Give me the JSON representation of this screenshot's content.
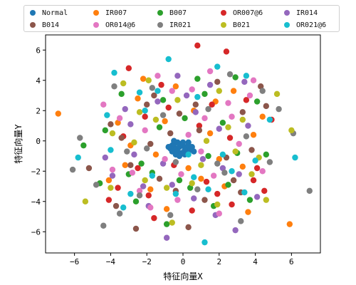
{
  "chart_data": {
    "type": "scatter",
    "title": "",
    "xlabel": "特征向量X",
    "ylabel": "特征向量Y",
    "xlim": [
      -7.6,
      7.6
    ],
    "ylim": [
      -7.4,
      7.0
    ],
    "xticks": [
      -6,
      -4,
      -2,
      0,
      2,
      4,
      6
    ],
    "yticks": [
      -6,
      -4,
      -2,
      0,
      2,
      4,
      6
    ],
    "tick_labels_x": [
      "−6",
      "−4",
      "−2",
      "0",
      "2",
      "4",
      "6"
    ],
    "tick_labels_y": [
      "−6",
      "−4",
      "−2",
      "0",
      "2",
      "4",
      "6"
    ],
    "legend_position": "top",
    "series": [
      {
        "name": "Normal",
        "color": "#1f77b4",
        "points": [
          [
            -0.6,
            -0.3
          ],
          [
            -0.4,
            -0.5
          ],
          [
            -0.2,
            -0.4
          ],
          [
            0.0,
            -0.3
          ],
          [
            0.2,
            -0.5
          ],
          [
            -0.5,
            -0.2
          ],
          [
            -0.3,
            -0.7
          ],
          [
            0.1,
            -0.6
          ],
          [
            -0.1,
            -0.2
          ],
          [
            0.3,
            -0.3
          ],
          [
            -0.4,
            -0.9
          ],
          [
            0.2,
            -0.8
          ],
          [
            -0.7,
            -0.5
          ],
          [
            0.4,
            -0.6
          ],
          [
            -0.2,
            -1.0
          ],
          [
            0.0,
            -0.1
          ],
          [
            -0.8,
            -0.4
          ],
          [
            0.5,
            -0.4
          ],
          [
            -0.3,
            -0.1
          ],
          [
            0.1,
            -0.9
          ],
          [
            -0.6,
            -0.7
          ],
          [
            0.3,
            -0.1
          ],
          [
            -0.1,
            -0.8
          ],
          [
            0.6,
            -0.7
          ],
          [
            -0.5,
            0.0
          ]
        ]
      },
      {
        "name": "IR007",
        "color": "#ff7f0e",
        "points": [
          [
            -6.9,
            1.8
          ],
          [
            5.9,
            -5.5
          ],
          [
            -3.2,
            -1.6
          ],
          [
            3.6,
            -4.7
          ],
          [
            -1.0,
            1.3
          ],
          [
            1.5,
            0.5
          ],
          [
            2.0,
            -1.2
          ],
          [
            -2.5,
            2.8
          ],
          [
            2.8,
            3.3
          ],
          [
            -4.1,
            -2.6
          ],
          [
            1.0,
            -2.5
          ],
          [
            -0.4,
            3.6
          ],
          [
            3.3,
            -1.7
          ],
          [
            -1.8,
            -3.2
          ],
          [
            0.6,
            2.0
          ],
          [
            -2.9,
            -0.3
          ],
          [
            4.4,
            1.6
          ],
          [
            -0.9,
            -4.5
          ],
          [
            2.3,
            -3.0
          ],
          [
            -3.6,
            1.2
          ],
          [
            0.3,
            -1.8
          ],
          [
            1.8,
            2.6
          ],
          [
            -1.5,
            -0.9
          ],
          [
            3.9,
            0.4
          ],
          [
            -2.2,
            4.1
          ]
        ]
      },
      {
        "name": "B007",
        "color": "#2ca02c",
        "points": [
          [
            -5.5,
            -0.3
          ],
          [
            4.1,
            2.6
          ],
          [
            -2.3,
            -1.5
          ],
          [
            2.5,
            -2.9
          ],
          [
            -1.1,
            2.7
          ],
          [
            1.2,
            3.1
          ],
          [
            -3.4,
            3.1
          ],
          [
            3.0,
            -0.8
          ],
          [
            -0.9,
            -5.5
          ],
          [
            1.7,
            -4.3
          ],
          [
            -4.3,
            0.7
          ],
          [
            0.4,
            -3.1
          ],
          [
            2.2,
            1.2
          ],
          [
            -1.7,
            -2.1
          ],
          [
            3.7,
            -3.9
          ],
          [
            -2.6,
            -4.0
          ],
          [
            0.8,
            4.1
          ],
          [
            -0.2,
            -2.6
          ],
          [
            4.6,
            -0.9
          ],
          [
            -3.0,
            -2.2
          ],
          [
            1.4,
            -1.0
          ],
          [
            -1.3,
            0.9
          ],
          [
            2.9,
            4.2
          ],
          [
            -4.6,
            -2.8
          ],
          [
            0.1,
            1.5
          ]
        ]
      },
      {
        "name": "OR007@6",
        "color": "#d62728",
        "points": [
          [
            0.8,
            6.3
          ],
          [
            2.4,
            5.9
          ],
          [
            -3.6,
            -3.1
          ],
          [
            4.1,
            -1.8
          ],
          [
            -3.0,
            4.8
          ],
          [
            1.3,
            -2.7
          ],
          [
            -1.9,
            -3.6
          ],
          [
            2.6,
            0.2
          ],
          [
            -0.5,
            -1.6
          ],
          [
            3.5,
            2.7
          ],
          [
            -2.1,
            1.6
          ],
          [
            0.5,
            -4.6
          ],
          [
            -4.1,
            -3.9
          ],
          [
            4.9,
            1.4
          ],
          [
            -1.2,
            3.7
          ],
          [
            1.9,
            -3.5
          ],
          [
            -3.3,
            0.3
          ],
          [
            2.7,
            -4.2
          ],
          [
            -0.8,
            2.2
          ],
          [
            3.9,
            -2.6
          ],
          [
            -2.5,
            -1.8
          ],
          [
            0.9,
            1.0
          ],
          [
            4.5,
            -3.3
          ],
          [
            -1.6,
            -5.1
          ],
          [
            1.6,
            2.4
          ]
        ]
      },
      {
        "name": "IR014",
        "color": "#9467bd",
        "points": [
          [
            -0.9,
            -6.4
          ],
          [
            3.4,
            3.9
          ],
          [
            -3.9,
            -2.3
          ],
          [
            2.9,
            -5.9
          ],
          [
            -1.4,
            2.6
          ],
          [
            0.6,
            -3.8
          ],
          [
            -2.7,
            -0.9
          ],
          [
            2.2,
            -1.8
          ],
          [
            -0.3,
            4.3
          ],
          [
            3.6,
            1.0
          ],
          [
            -1.9,
            -4.3
          ],
          [
            1.5,
            3.7
          ],
          [
            -3.2,
            2.1
          ],
          [
            4.1,
            -3.7
          ],
          [
            -0.6,
            -2.9
          ],
          [
            2.0,
            0.8
          ],
          [
            -4.3,
            -1.1
          ],
          [
            0.2,
            3.0
          ],
          [
            -2.2,
            -3.0
          ],
          [
            1.1,
            -1.2
          ],
          [
            3.1,
            -2.2
          ],
          [
            -1.1,
            -1.5
          ],
          [
            0.7,
            1.9
          ],
          [
            -2.9,
            1.1
          ],
          [
            1.8,
            -4.9
          ]
        ]
      },
      {
        "name": "B014",
        "color": "#8c564b",
        "points": [
          [
            -5.2,
            -1.8
          ],
          [
            4.3,
            3.6
          ],
          [
            -2.6,
            -5.8
          ],
          [
            3.2,
            -3.4
          ],
          [
            -1.6,
            3.0
          ],
          [
            0.7,
            2.4
          ],
          [
            -2.9,
            -1.6
          ],
          [
            2.4,
            -1.1
          ],
          [
            -0.4,
            -3.3
          ],
          [
            1.9,
            3.9
          ],
          [
            -4.0,
            1.1
          ],
          [
            3.8,
            -0.6
          ],
          [
            -1.3,
            -2.5
          ],
          [
            0.3,
            -5.7
          ],
          [
            -3.4,
            0.2
          ],
          [
            4.6,
            2.3
          ],
          [
            -0.7,
            0.5
          ],
          [
            2.8,
            -2.6
          ],
          [
            -2.0,
            2.4
          ],
          [
            1.2,
            -3.9
          ],
          [
            -3.7,
            -4.3
          ],
          [
            0.9,
            0.7
          ],
          [
            -1.8,
            -0.2
          ],
          [
            3.3,
            1.9
          ],
          [
            -0.2,
            1.8
          ]
        ]
      },
      {
        "name": "OR014@6",
        "color": "#e377c2",
        "points": [
          [
            0.5,
            3.4
          ],
          [
            -2.1,
            0.7
          ],
          [
            2.0,
            -4.8
          ],
          [
            -3.9,
            -1.9
          ],
          [
            3.9,
            4.0
          ],
          [
            -1.0,
            -1.2
          ],
          [
            1.2,
            1.5
          ],
          [
            -2.8,
            -2.1
          ],
          [
            3.1,
            -0.2
          ],
          [
            -0.1,
            -2.2
          ],
          [
            2.5,
            2.5
          ],
          [
            -3.5,
            1.5
          ],
          [
            1.7,
            -2.3
          ],
          [
            -0.6,
            3.3
          ],
          [
            4.4,
            -2.0
          ],
          [
            -1.8,
            -4.4
          ],
          [
            0.3,
            0.4
          ],
          [
            -4.4,
            2.4
          ],
          [
            2.7,
            1.6
          ],
          [
            -1.4,
            4.3
          ],
          [
            1.0,
            -0.7
          ],
          [
            -2.4,
            -3.3
          ],
          [
            3.7,
            3.0
          ],
          [
            -0.3,
            -3.9
          ],
          [
            1.5,
            4.6
          ]
        ]
      },
      {
        "name": "IR021",
        "color": "#7f7f7f",
        "points": [
          [
            7.0,
            -3.3
          ],
          [
            -4.4,
            -5.6
          ],
          [
            -5.7,
            0.2
          ],
          [
            6.1,
            0.5
          ],
          [
            -3.8,
            3.6
          ],
          [
            4.4,
            3.3
          ],
          [
            -2.4,
            -3.6
          ],
          [
            3.2,
            -5.3
          ],
          [
            -1.7,
            3.5
          ],
          [
            1.9,
            -1.5
          ],
          [
            -0.7,
            -4.9
          ],
          [
            2.6,
            4.4
          ],
          [
            -3.1,
            -0.7
          ],
          [
            4.8,
            -1.4
          ],
          [
            -6.1,
            -1.9
          ],
          [
            0.8,
            -3.2
          ],
          [
            -2.0,
            -0.5
          ],
          [
            3.5,
            0.3
          ],
          [
            -1.1,
            1.7
          ],
          [
            5.3,
            2.1
          ],
          [
            -4.8,
            -2.9
          ],
          [
            1.4,
            2.1
          ],
          [
            -0.4,
            -1.4
          ],
          [
            2.3,
            -2.1
          ],
          [
            -3.5,
            -4.8
          ]
        ]
      },
      {
        "name": "B021",
        "color": "#bcbd22",
        "points": [
          [
            6.0,
            0.7
          ],
          [
            -3.3,
            3.8
          ],
          [
            -5.4,
            -4.0
          ],
          [
            5.2,
            3.1
          ],
          [
            -2.1,
            -2.6
          ],
          [
            1.9,
            -4.2
          ],
          [
            -0.3,
            2.7
          ],
          [
            3.8,
            -2.2
          ],
          [
            -4.0,
            -3.1
          ],
          [
            2.5,
            0.9
          ],
          [
            -1.5,
            1.4
          ],
          [
            4.6,
            -3.9
          ],
          [
            -2.7,
            -0.1
          ],
          [
            1.0,
            -1.6
          ],
          [
            -0.9,
            -3.1
          ],
          [
            3.3,
            1.4
          ],
          [
            -3.9,
            0.5
          ],
          [
            0.5,
            -2.8
          ],
          [
            2.0,
            3.3
          ],
          [
            -1.9,
            4.0
          ],
          [
            4.2,
            -1.1
          ],
          [
            -2.4,
            1.9
          ],
          [
            1.3,
            0.0
          ],
          [
            -0.6,
            -5.4
          ],
          [
            2.9,
            -0.7
          ]
        ]
      },
      {
        "name": "OR021@6",
        "color": "#17becf",
        "points": [
          [
            -4.2,
            1.7
          ],
          [
            4.8,
            1.4
          ],
          [
            -1.4,
            3.3
          ],
          [
            2.2,
            -0.9
          ],
          [
            -0.4,
            -3.5
          ],
          [
            3.5,
            4.3
          ],
          [
            -2.4,
            3.2
          ],
          [
            1.4,
            -3.2
          ],
          [
            -3.3,
            -4.4
          ],
          [
            0.8,
            2.9
          ],
          [
            -1.7,
            -2.3
          ],
          [
            4.0,
            -1.3
          ],
          [
            -4.0,
            -0.6
          ],
          [
            -2.1,
            2.0
          ],
          [
            1.2,
            -6.7
          ],
          [
            -0.8,
            5.4
          ],
          [
            3.4,
            -3.4
          ],
          [
            -5.8,
            -1.1
          ],
          [
            0.3,
            -0.9
          ],
          [
            2.7,
            -2.0
          ],
          [
            -2.9,
            -3.5
          ],
          [
            1.9,
            4.9
          ],
          [
            6.2,
            -1.1
          ],
          [
            -3.8,
            4.5
          ],
          [
            0.6,
            -2.4
          ]
        ]
      }
    ]
  }
}
